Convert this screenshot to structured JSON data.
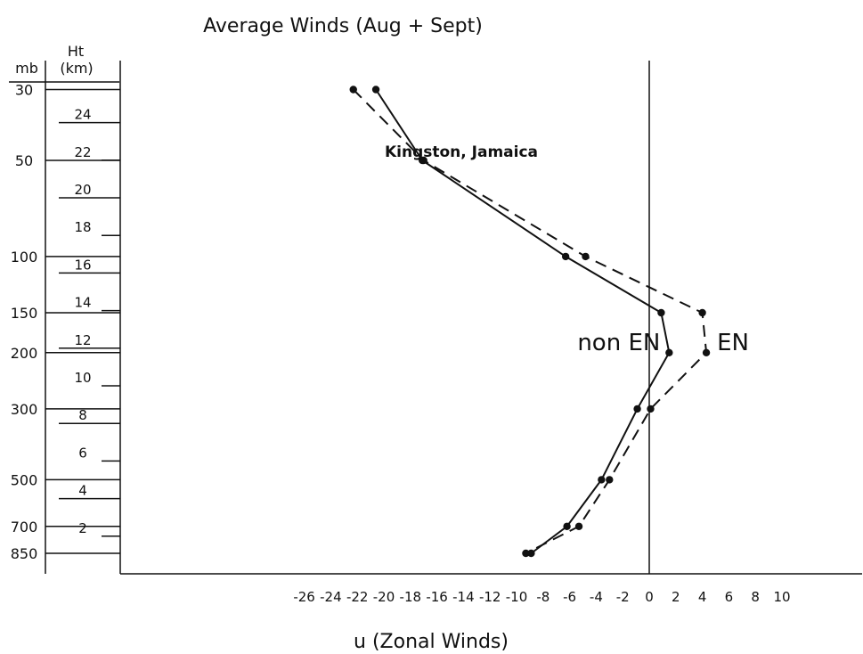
{
  "chart_data": {
    "type": "line",
    "title": "Average Winds (Aug + Sept)",
    "annotation": "Kingston, Jamaica",
    "xlabel": "u (Zonal Winds)",
    "xlim": [
      -28,
      11
    ],
    "x_ticks": [
      -26,
      -24,
      -22,
      -20,
      -18,
      -16,
      -14,
      -12,
      -10,
      -8,
      -6,
      -4,
      -2,
      0,
      2,
      4,
      6,
      8,
      10
    ],
    "pressure_axis": {
      "label": "mb",
      "ticks": [
        30,
        50,
        100,
        150,
        200,
        300,
        500,
        700,
        850
      ]
    },
    "height_axis": {
      "label_line1": "Ht",
      "label_line2": "(km)",
      "ticks": [
        2,
        4,
        6,
        8,
        10,
        12,
        14,
        16,
        18,
        20,
        22,
        24
      ]
    },
    "series": [
      {
        "name": "non EN",
        "dash": "solid",
        "points": [
          {
            "u": -20.6,
            "p": 30
          },
          {
            "u": -17.1,
            "p": 50
          },
          {
            "u": -6.3,
            "p": 100
          },
          {
            "u": 0.9,
            "p": 150
          },
          {
            "u": 1.5,
            "p": 200
          },
          {
            "u": -0.9,
            "p": 300
          },
          {
            "u": -3.6,
            "p": 500
          },
          {
            "u": -6.2,
            "p": 700
          },
          {
            "u": -8.9,
            "p": 850
          }
        ]
      },
      {
        "name": "EN",
        "dash": "dashed",
        "points": [
          {
            "u": -22.3,
            "p": 30
          },
          {
            "u": -17.0,
            "p": 50
          },
          {
            "u": -4.8,
            "p": 100
          },
          {
            "u": 4.0,
            "p": 150
          },
          {
            "u": 4.3,
            "p": 200
          },
          {
            "u": 0.1,
            "p": 300
          },
          {
            "u": -3.0,
            "p": 500
          },
          {
            "u": -5.3,
            "p": 700
          },
          {
            "u": -9.3,
            "p": 850
          }
        ]
      }
    ]
  }
}
